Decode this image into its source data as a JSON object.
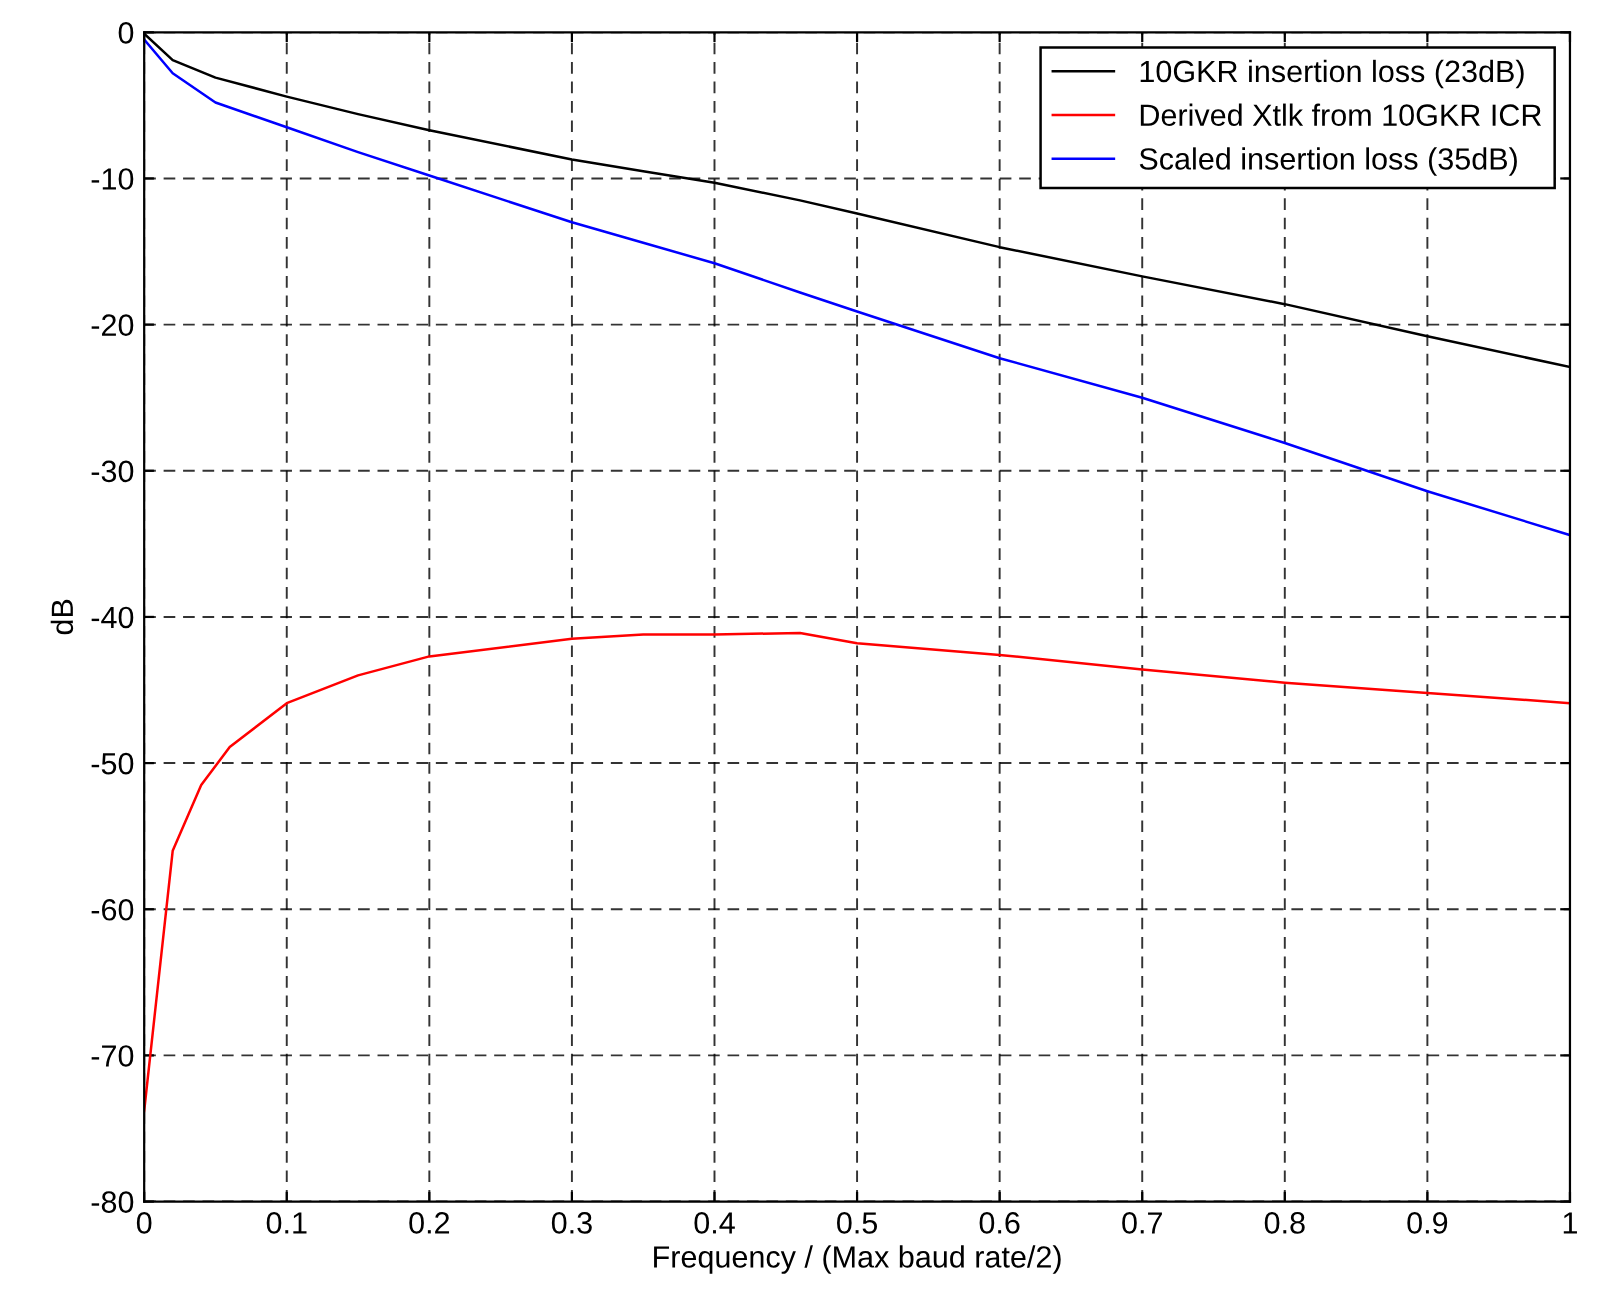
{
  "chart_data": {
    "type": "line",
    "xlabel": "Frequency / (Max baud rate/2)",
    "ylabel": "dB",
    "xlim": [
      0,
      1
    ],
    "ylim": [
      -80,
      0
    ],
    "xticks": [
      0,
      0.1,
      0.2,
      0.3,
      0.4,
      0.5,
      0.6,
      0.7,
      0.8,
      0.9,
      1
    ],
    "yticks": [
      -80,
      -70,
      -60,
      -50,
      -40,
      -30,
      -20,
      -10,
      0
    ],
    "grid": true,
    "legend": "top right",
    "line_style": "solid",
    "marker": "none",
    "x": [
      0,
      0.02,
      0.05,
      0.1,
      0.15,
      0.2,
      0.3,
      0.35,
      0.4,
      0.46,
      0.5,
      0.6,
      0.7,
      0.8,
      0.9,
      1
    ],
    "series": [
      {
        "name": "10GKR insertion loss (23dB)",
        "color": "#000000",
        "values": [
          -0.1,
          -1.9,
          -3.1,
          -4.4,
          -5.6,
          -6.7,
          -8.7,
          -9.5,
          -10.3,
          -11.5,
          -12.4,
          -14.7,
          -16.7,
          -18.6,
          -20.8,
          -22.9
        ]
      },
      {
        "name": "Derived Xtlk from 10GKR ICR",
        "color": "#ff0000",
        "x": [
          0,
          0.02,
          0.04,
          0.06,
          0.1,
          0.15,
          0.2,
          0.3,
          0.35,
          0.4,
          0.46,
          0.5,
          0.6,
          0.7,
          0.8,
          0.9,
          1
        ],
        "values": [
          -73.8,
          -56,
          -51.5,
          -48.9,
          -45.9,
          -44,
          -42.7,
          -41.5,
          -41.2,
          -41.2,
          -41.1,
          -41.8,
          -42.6,
          -43.6,
          -44.5,
          -45.2,
          -45.9
        ]
      },
      {
        "name": "Scaled insertion loss (35dB)",
        "color": "#0000ff",
        "values": [
          -0.5,
          -2.8,
          -4.8,
          -6.5,
          -8.2,
          -9.8,
          -13.0,
          -14.4,
          -15.8,
          -17.8,
          -19.1,
          -22.3,
          -25.0,
          -28.1,
          -31.4,
          -34.4
        ]
      }
    ]
  }
}
